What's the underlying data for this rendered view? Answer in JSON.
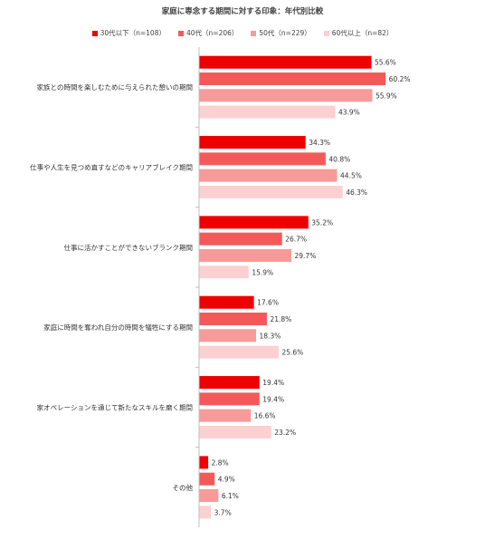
{
  "chart_data": {
    "type": "bar",
    "orientation": "horizontal",
    "title": "家庭に専念する期間に対する印象：年代別比較",
    "legend_position": "top",
    "grid": false,
    "xlim": [
      0,
      70
    ],
    "categories": [
      "家族との時間を楽しむために与えられた憩いの期間",
      "仕事や人生を見つめ直すなどのキャリアブレイク期間",
      "仕事に活かすことができないブランク期間",
      "家庭に時間を奪われ自分の時間を犠牲にする期間",
      "家オペレーションを通じて新たなスキルを磨く期間",
      "その他"
    ],
    "series": [
      {
        "name": "30代以下（n=108）",
        "color": "#ee0000",
        "values": [
          55.6,
          34.3,
          35.2,
          17.6,
          19.4,
          2.8
        ],
        "labels": [
          "55.6%",
          "34.3%",
          "35.2%",
          "17.6%",
          "19.4%",
          "2.8%"
        ]
      },
      {
        "name": "40代（n=206）",
        "color": "#f25a5a",
        "values": [
          60.2,
          40.8,
          26.7,
          21.8,
          19.4,
          4.9
        ],
        "labels": [
          "60.2%",
          "40.8%",
          "26.7%",
          "21.8%",
          "19.4%",
          "4.9%"
        ]
      },
      {
        "name": "50代（n=229）",
        "color": "#f89a9a",
        "values": [
          55.9,
          44.5,
          29.7,
          18.3,
          16.6,
          6.1
        ],
        "labels": [
          "55.9%",
          "44.5%",
          "29.7%",
          "18.3%",
          "16.6%",
          "6.1%"
        ]
      },
      {
        "name": "60代以上（n=82）",
        "color": "#fcd0d0",
        "values": [
          43.9,
          46.3,
          15.9,
          25.6,
          23.2,
          3.7
        ],
        "labels": [
          "43.9%",
          "46.3%",
          "15.9%",
          "25.6%",
          "23.2%",
          "3.7%"
        ]
      }
    ]
  }
}
